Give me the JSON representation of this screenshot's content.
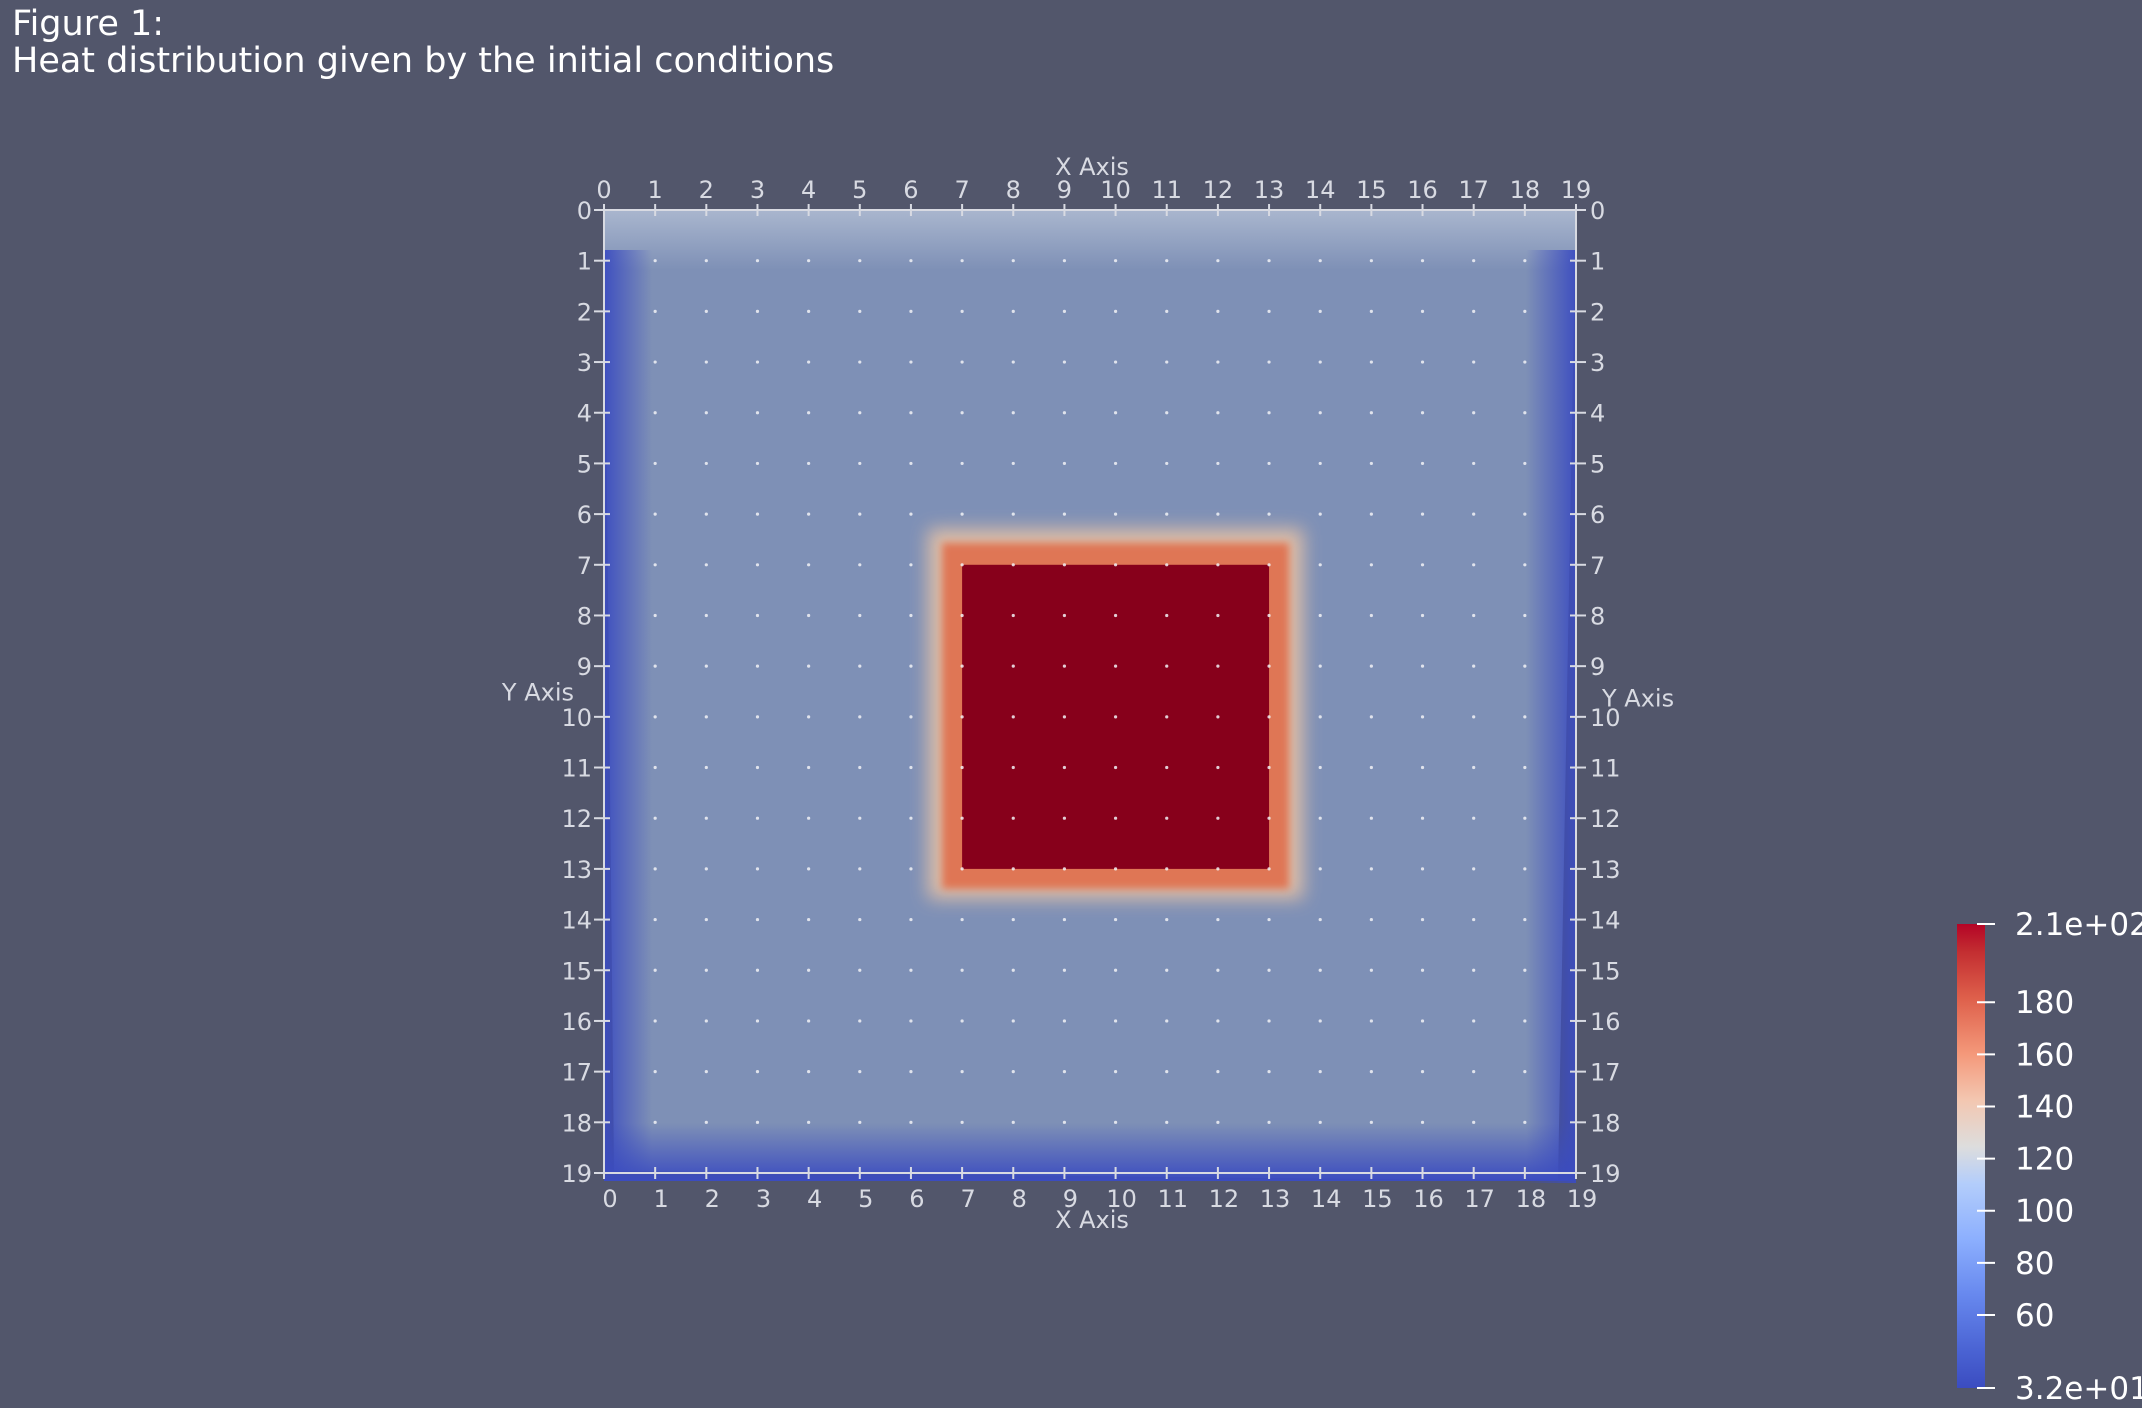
{
  "figure": {
    "label": "Figure 1:",
    "title": "Heat distribution given by the initial conditions"
  },
  "colors": {
    "background": "#52566b",
    "plate": "#7e90b6",
    "hot": "#87001b",
    "cold": "#3b4cc0",
    "axis": "#d8dae2"
  },
  "chart_data": {
    "type": "heatmap",
    "title": "Heat distribution given by the initial conditions",
    "xlabel": "X Axis",
    "ylabel": "Y Axis",
    "x_ticks": [
      0,
      1,
      2,
      3,
      4,
      5,
      6,
      7,
      8,
      9,
      10,
      11,
      12,
      13,
      14,
      15,
      16,
      17,
      18,
      19
    ],
    "y_ticks": [
      0,
      1,
      2,
      3,
      4,
      5,
      6,
      7,
      8,
      9,
      10,
      11,
      12,
      13,
      14,
      15,
      16,
      17,
      18,
      19
    ],
    "xlim": [
      0,
      19
    ],
    "ylim": [
      0,
      19
    ],
    "y_axis_direction": "down",
    "grid": "points",
    "background_value": 100,
    "hot_region": {
      "x": [
        7,
        13
      ],
      "y": [
        7,
        13
      ],
      "value": 210
    },
    "boundary_cold_edges": [
      "left",
      "bottom",
      "right"
    ],
    "boundary_value": 32,
    "colorbar": {
      "colormap": "coolwarm",
      "min": 32,
      "max": 210,
      "min_label": "3.2e+01",
      "max_label": "2.1e+02",
      "ticks": [
        60,
        80,
        100,
        120,
        140,
        160,
        180
      ]
    }
  }
}
